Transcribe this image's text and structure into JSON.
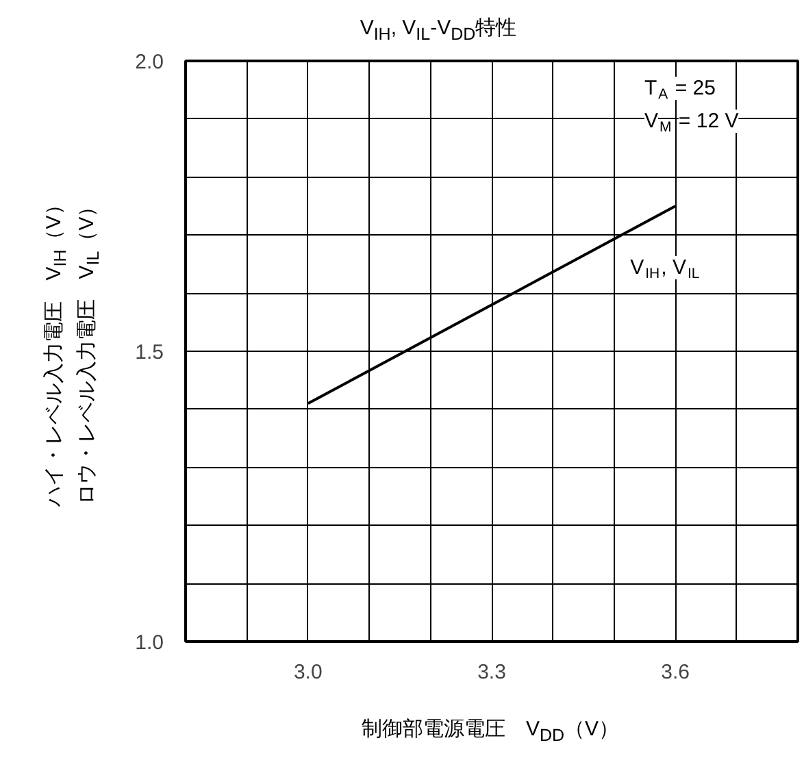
{
  "chart_data": {
    "type": "line",
    "title": "V$_{IH}$, V$_{IL}$-V$_{DD}$特性",
    "xlabel": "制御部電源電圧　V$_{DD}$（V）",
    "ylabel": "ハイ・レベル入力電圧　V$_{IH}$（V）ロウ・レベル入力電圧　V$_{IL}$（V）",
    "annotations": [
      "T$_{A}$ = 25",
      "V$_{M}$ = 12 V"
    ],
    "x": [
      3.0,
      3.6
    ],
    "series": [
      {
        "name": "V$_{IH}$, V$_{IL}$",
        "color": "#000000",
        "values": [
          1.41,
          1.75
        ]
      }
    ],
    "xlim": [
      2.8,
      3.8
    ],
    "xticks": [
      {
        "value": 2.8,
        "label": null
      },
      {
        "value": 2.9,
        "label": null
      },
      {
        "value": 3.0,
        "label": "3.0"
      },
      {
        "value": 3.1,
        "label": null
      },
      {
        "value": 3.2,
        "label": null
      },
      3.3,
      {
        "value": 3.4,
        "label": null
      },
      {
        "value": 3.5,
        "label": null
      },
      3.6,
      {
        "value": 3.7,
        "label": null
      },
      {
        "value": 3.8,
        "label": null
      }
    ],
    "ylim": [
      1.0,
      2.0
    ],
    "yticks": [
      {
        "value": 1.0,
        "label": "1.0"
      },
      {
        "value": 1.1,
        "label": null
      },
      {
        "value": 1.2,
        "label": null
      },
      {
        "value": 1.3,
        "label": null
      },
      {
        "value": 1.4,
        "label": null
      },
      1.5,
      {
        "value": 1.6,
        "label": null
      },
      {
        "value": 1.7,
        "label": null
      },
      {
        "value": 1.8,
        "label": null
      },
      {
        "value": 1.9,
        "label": null
      },
      {
        "value": 2.0,
        "label": "2.0"
      }
    ],
    "grid": true,
    "marker": "none",
    "line_style": "solid"
  }
}
